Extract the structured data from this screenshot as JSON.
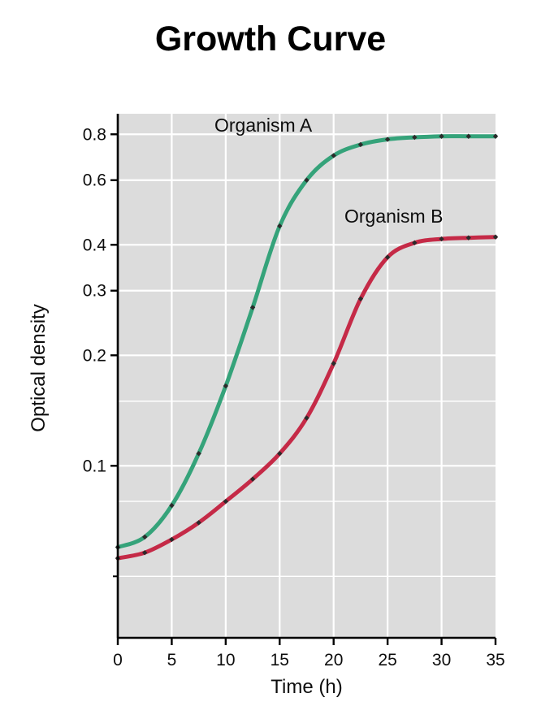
{
  "page": {
    "title": "Growth Curve"
  },
  "chart_data": {
    "type": "line",
    "title": "Growth Curve",
    "xlabel": "Time (h)",
    "ylabel": "Optical density",
    "yscale": "log",
    "grid": true,
    "legend_position": "inline-annotations",
    "xlim": [
      0,
      35
    ],
    "ylim": [
      0.034,
      0.91
    ],
    "x_ticks": [
      0,
      5,
      10,
      15,
      20,
      25,
      30,
      35
    ],
    "y_ticks": [
      0.8,
      0.6,
      0.4,
      0.3,
      0.2,
      0.1
    ],
    "y_minor_gridlines": [
      0.15,
      0.08,
      0.05
    ],
    "y_minor_ticks": [
      0.05
    ],
    "plot_bg": "#dcdcdc",
    "grid_color": "#ffffff",
    "axis_color": "#000000",
    "marker_color": "#2b2b2b",
    "series": [
      {
        "name": "Organism A",
        "color": "#35a37a",
        "x": [
          0,
          2.5,
          5,
          7.5,
          10,
          12.5,
          15,
          17.5,
          20,
          22.5,
          25,
          27.5,
          30,
          32.5,
          35
        ],
        "values": [
          0.06,
          0.064,
          0.078,
          0.108,
          0.165,
          0.27,
          0.45,
          0.6,
          0.7,
          0.75,
          0.775,
          0.785,
          0.79,
          0.79,
          0.79
        ]
      },
      {
        "name": "Organism B",
        "color": "#c52a47",
        "x": [
          0,
          2.5,
          5,
          7.5,
          10,
          12.5,
          15,
          17.5,
          20,
          22.5,
          25,
          27.5,
          30,
          32.5,
          35
        ],
        "values": [
          0.056,
          0.058,
          0.063,
          0.07,
          0.08,
          0.092,
          0.108,
          0.135,
          0.19,
          0.285,
          0.37,
          0.405,
          0.415,
          0.418,
          0.42
        ]
      }
    ]
  }
}
